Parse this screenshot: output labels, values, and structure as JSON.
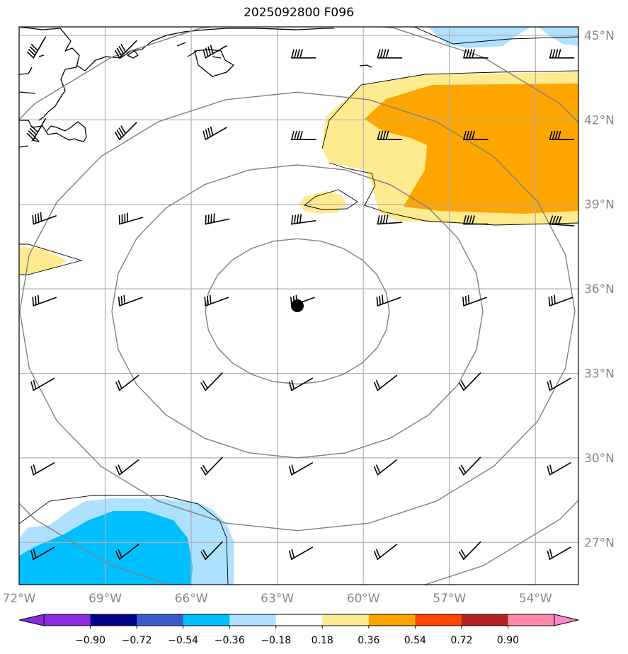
{
  "title": "2025092800 F096",
  "map": {
    "lon_range": [
      -72,
      -52.5
    ],
    "lat_range": [
      25.5,
      45.3
    ],
    "lon_ticks": [
      {
        "value": -72,
        "label": "72°W"
      },
      {
        "value": -69,
        "label": "69°W"
      },
      {
        "value": -66,
        "label": "66°W"
      },
      {
        "value": -63,
        "label": "63°W"
      },
      {
        "value": -60,
        "label": "60°W"
      },
      {
        "value": -57,
        "label": "57°W"
      },
      {
        "value": -54,
        "label": "54°W"
      }
    ],
    "lat_ticks": [
      {
        "value": 45,
        "label": "45°N"
      },
      {
        "value": 42,
        "label": "42°N"
      },
      {
        "value": 39,
        "label": "39°N"
      },
      {
        "value": 36,
        "label": "36°N"
      },
      {
        "value": 33,
        "label": "33°N"
      },
      {
        "value": 30,
        "label": "30°N"
      },
      {
        "value": 27,
        "label": "27°N"
      }
    ],
    "center_marker": {
      "lon": -62.3,
      "lat": 35.4
    },
    "range_rings": 4,
    "gridlines": true,
    "colors": {
      "grid": "#b0b0b0",
      "rings": "#808080",
      "coast": "#000000",
      "pos_018_036": "#ffeb8f",
      "pos_036_054": "#ffa500",
      "neg_018_036": "#aee0ff",
      "neg_036_054": "#00bfff"
    }
  },
  "colorbar": {
    "ticks": [
      "−0.90",
      "−0.72",
      "−0.54",
      "−0.36",
      "−0.18",
      "0.18",
      "0.36",
      "0.54",
      "0.72",
      "0.90"
    ],
    "colors": [
      "#8a2be2",
      "#00008b",
      "#3b5bcc",
      "#00bfff",
      "#aee0ff",
      "#ffffff",
      "#ffeb8f",
      "#ffa500",
      "#ff4500",
      "#b22222",
      "#ff88aa",
      "#ff88cc"
    ]
  }
}
